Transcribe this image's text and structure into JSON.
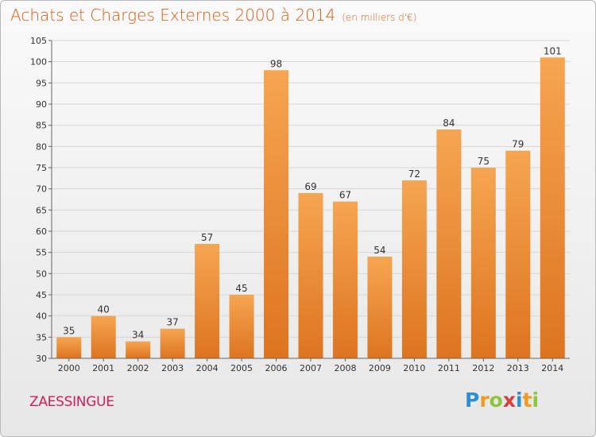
{
  "title": {
    "main": "Achats et Charges Externes 2000 à 2014",
    "unit": "(en milliers d'€)"
  },
  "commune": "ZAESSINGUE",
  "logo": {
    "text": "Proxiti",
    "letters": [
      {
        "ch": "P",
        "color": "#2a8fd6"
      },
      {
        "ch": "r",
        "color": "#f39a1d"
      },
      {
        "ch": "o",
        "color": "#8cc63f"
      },
      {
        "ch": "x",
        "color": "#e03b3b"
      },
      {
        "ch": "i",
        "color": "#2a8fd6"
      },
      {
        "ch": "t",
        "color": "#f39a1d"
      },
      {
        "ch": "i",
        "color": "#8cc63f"
      }
    ]
  },
  "colors": {
    "bar_top": "#f6a551",
    "bar_bottom": "#dd7420",
    "title": "#e05a10",
    "commune": "#d81b57",
    "grid": "#d6d6d6"
  },
  "chart_data": {
    "type": "bar",
    "title": "Achats et Charges Externes 2000 à 2014",
    "subtitle": "(en milliers d'€)",
    "categories": [
      "2000",
      "2001",
      "2002",
      "2003",
      "2004",
      "2005",
      "2006",
      "2007",
      "2008",
      "2009",
      "2010",
      "2011",
      "2012",
      "2013",
      "2014"
    ],
    "values": [
      35,
      40,
      34,
      37,
      57,
      45,
      98,
      69,
      67,
      54,
      72,
      84,
      75,
      79,
      101
    ],
    "ylim": [
      30,
      105
    ],
    "yticks": [
      30,
      35,
      40,
      45,
      50,
      55,
      60,
      65,
      70,
      75,
      80,
      85,
      90,
      95,
      100,
      105
    ],
    "xlabel": "",
    "ylabel": "",
    "grid": true,
    "data_labels": true
  }
}
